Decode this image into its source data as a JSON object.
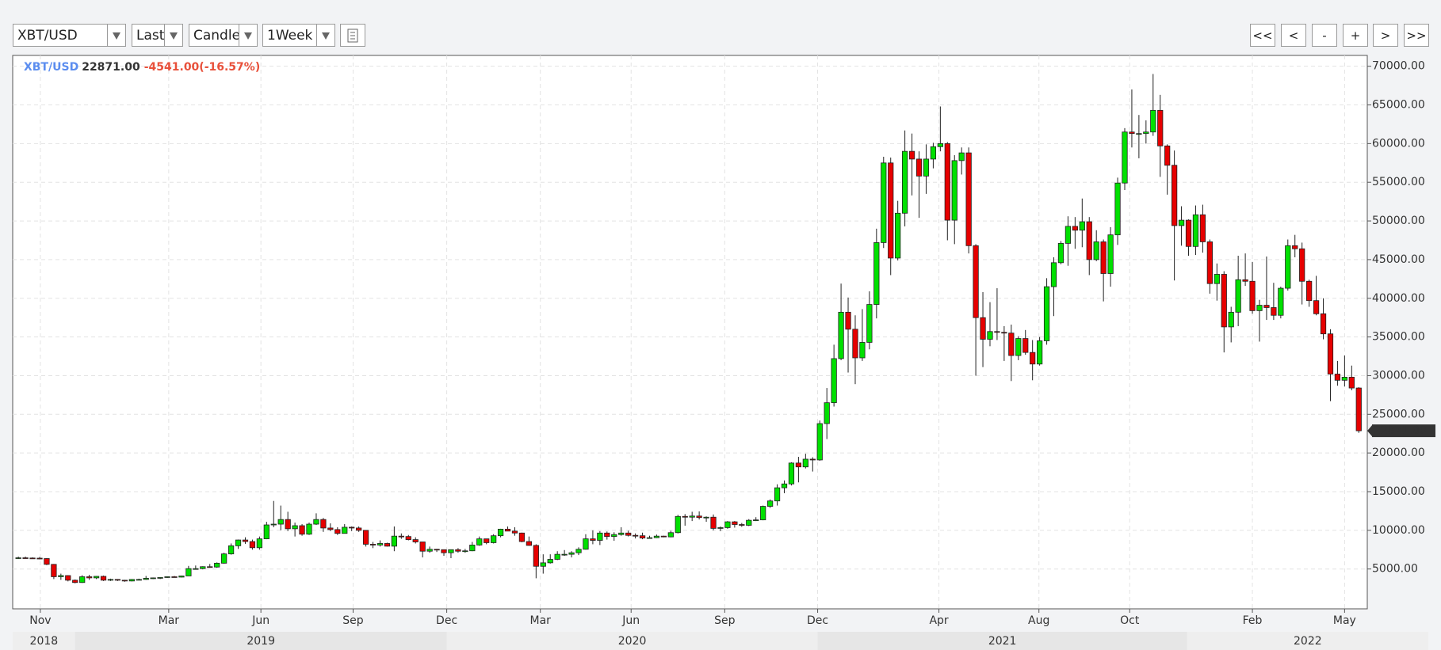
{
  "toolbar": {
    "selects": [
      "XBT/USD",
      "Last",
      "Candle",
      "1Week"
    ],
    "buttons": [
      "<<",
      "<",
      "-",
      "+",
      ">",
      ">>"
    ]
  },
  "chart_data": {
    "type": "candlestick",
    "header": {
      "symbol": "XBT/USD",
      "price": "22871.00",
      "change": "-4541.00(-16.57%)"
    },
    "up_color": "#00e000",
    "down_color": "#e60000",
    "grid": true,
    "xlim": [
      -0.8,
      190.2
    ],
    "xticks": [
      {
        "value": 3.1,
        "label": "Nov"
      },
      {
        "value": 21.2,
        "label": "Mar"
      },
      {
        "value": 34.2,
        "label": "Jun"
      },
      {
        "value": 47.2,
        "label": "Sep"
      },
      {
        "value": 60.4,
        "label": "Dec"
      },
      {
        "value": 73.6,
        "label": "Mar"
      },
      {
        "value": 86.4,
        "label": "Jun"
      },
      {
        "value": 99.6,
        "label": "Sep"
      },
      {
        "value": 112.7,
        "label": "Dec"
      },
      {
        "value": 129.8,
        "label": "Apr"
      },
      {
        "value": 143.9,
        "label": "Aug"
      },
      {
        "value": 156.7,
        "label": "Oct"
      },
      {
        "value": 174.0,
        "label": "Feb"
      },
      {
        "value": 187.0,
        "label": "May"
      }
    ],
    "year_bands": [
      {
        "label": "2018",
        "start": -0.8,
        "end": 8.0
      },
      {
        "label": "2019",
        "start": 8.0,
        "end": 60.4
      },
      {
        "label": "2020",
        "start": 60.4,
        "end": 112.7
      },
      {
        "label": "2021",
        "start": 112.7,
        "end": 164.8
      },
      {
        "label": "2022",
        "start": 164.8,
        "end": 198.8
      }
    ],
    "ylim": [
      -150,
      71400
    ],
    "yticks": [
      {
        "value": 5000,
        "label": "5000.00"
      },
      {
        "value": 10000,
        "label": "10000.00"
      },
      {
        "value": 15000,
        "label": "15000.00"
      },
      {
        "value": 20000,
        "label": "20000.00"
      },
      {
        "value": 25000,
        "label": "25000.00"
      },
      {
        "value": 30000,
        "label": "30000.00"
      },
      {
        "value": 35000,
        "label": "35000.00"
      },
      {
        "value": 40000,
        "label": "40000.00"
      },
      {
        "value": 45000,
        "label": "45000.00"
      },
      {
        "value": 50000,
        "label": "50000.00"
      },
      {
        "value": 55000,
        "label": "55000.00"
      },
      {
        "value": 60000,
        "label": "60000.00"
      },
      {
        "value": 65000,
        "label": "65000.00"
      },
      {
        "value": 70000,
        "label": "70000.00"
      }
    ],
    "open": [
      6400,
      6450,
      6420,
      6400,
      6350,
      5600,
      4000,
      4150,
      3550,
      3250,
      4000,
      3850,
      4050,
      3550,
      3650,
      3550,
      3450,
      3650,
      3650,
      3800,
      3850,
      3900,
      4000,
      3950,
      4100,
      5050,
      5050,
      5300,
      5250,
      5750,
      6950,
      8000,
      8750,
      8550,
      7750,
      8900,
      10700,
      10800,
      11400,
      10200,
      10600,
      9500,
      10800,
      11400,
      10300,
      10100,
      9600,
      10400,
      10300,
      10000,
      8200,
      8100,
      8300,
      7950,
      9250,
      9200,
      8800,
      8500,
      7300,
      7550,
      7500,
      7100,
      7500,
      7300,
      7350,
      8100,
      8900,
      8400,
      9300,
      10150,
      9900,
      9650,
      8550,
      8050,
      5350,
      5800,
      6250,
      6900,
      6900,
      7100,
      7550,
      8900,
      8700,
      9650,
      9200,
      9450,
      9650,
      9350,
      9300,
      9000,
      9050,
      9250,
      9150,
      9700,
      11800,
      11700,
      11850,
      11650,
      11700,
      10250,
      10350,
      11100,
      10750,
      10650,
      11300,
      11350,
      13100,
      13800,
      15500,
      16000,
      18700,
      18200,
      19200,
      19100,
      23800,
      26500,
      32200,
      38200,
      36000,
      32300,
      34300,
      39200,
      47200,
      57500,
      45200,
      51000,
      59000,
      58000,
      55800,
      58000,
      59600,
      60000,
      50100,
      57800,
      58800,
      46800,
      37500,
      34700,
      35700,
      35600,
      35500,
      32600,
      34800,
      33000,
      31500,
      34500,
      41500,
      44600,
      47100,
      49300,
      48800,
      49900,
      45000,
      47300,
      43200,
      48200,
      54900,
      61500,
      61300,
      61300,
      61500,
      64300,
      59700,
      57200,
      49400,
      50100,
      46700,
      50800,
      47300,
      41900,
      43100,
      36300,
      38200,
      42400,
      42200,
      38400,
      39100,
      38800,
      37800,
      41300,
      46800,
      46400,
      42200,
      39700,
      38000,
      35400,
      30200,
      29400,
      29800,
      28400
    ],
    "high": [
      6600,
      6600,
      6500,
      6550,
      6400,
      5650,
      4400,
      4200,
      3650,
      4200,
      4250,
      4100,
      4150,
      3750,
      3700,
      3600,
      3700,
      3750,
      4100,
      3900,
      3950,
      4050,
      4100,
      4150,
      5400,
      5450,
      5350,
      5650,
      5850,
      7100,
      8300,
      8800,
      9100,
      8800,
      9200,
      11100,
      13800,
      13200,
      12400,
      11000,
      10800,
      11000,
      12200,
      11600,
      10900,
      10400,
      10800,
      10500,
      10500,
      10000,
      8500,
      8700,
      8400,
      10500,
      9600,
      9400,
      9100,
      8500,
      7900,
      7600,
      7500,
      7500,
      7700,
      7600,
      8500,
      9200,
      8900,
      9500,
      10200,
      10500,
      10400,
      9700,
      9200,
      8200,
      6900,
      6900,
      7300,
      7450,
      7300,
      7800,
      9500,
      10000,
      9900,
      9850,
      9750,
      10400,
      9950,
      9600,
      9700,
      9300,
      9450,
      9300,
      9950,
      12000,
      12100,
      12400,
      12450,
      11800,
      12050,
      10500,
      11200,
      11200,
      10950,
      11450,
      11700,
      13200,
      14000,
      15950,
      16450,
      18800,
      19500,
      19900,
      19450,
      24200,
      28400,
      34000,
      41900,
      40100,
      37800,
      38600,
      40900,
      49000,
      58300,
      58200,
      52600,
      61700,
      61300,
      59000,
      59900,
      60100,
      64800,
      60200,
      58500,
      59500,
      59500,
      47000,
      40800,
      39500,
      41300,
      36400,
      36600,
      35100,
      35900,
      34600,
      35000,
      42600,
      45300,
      47400,
      50600,
      50500,
      52900,
      50500,
      48800,
      47600,
      49200,
      55600,
      62000,
      67000,
      63700,
      63000,
      69000,
      66300,
      59900,
      59100,
      51900,
      50200,
      52000,
      52100,
      47600,
      44500,
      43500,
      38900,
      45500,
      45800,
      44700,
      39800,
      45400,
      42000,
      41500,
      47600,
      48200,
      47200,
      42400,
      42900,
      40000,
      36000,
      31900,
      32600,
      31300,
      28500
    ],
    "low": [
      6300,
      6350,
      6300,
      6250,
      5500,
      3700,
      3600,
      3400,
      3150,
      3200,
      3600,
      3700,
      3450,
      3450,
      3450,
      3350,
      3400,
      3550,
      3600,
      3700,
      3700,
      3850,
      3900,
      3900,
      4100,
      4950,
      4950,
      5150,
      5150,
      5700,
      6850,
      7600,
      8250,
      7500,
      7500,
      8850,
      10400,
      10000,
      9900,
      9200,
      9300,
      9400,
      10700,
      9800,
      9900,
      9400,
      9600,
      9900,
      9800,
      7900,
      7700,
      7900,
      7900,
      7300,
      8900,
      8700,
      8300,
      6500,
      7100,
      7200,
      6700,
      6400,
      7100,
      7100,
      7300,
      8000,
      8200,
      8300,
      9100,
      9900,
      9300,
      8450,
      8000,
      3800,
      4400,
      5700,
      6150,
      6700,
      6500,
      6800,
      7500,
      8200,
      8100,
      8800,
      8650,
      9300,
      9200,
      8950,
      8850,
      8950,
      9000,
      9100,
      9100,
      9600,
      10600,
      11200,
      11400,
      11100,
      10000,
      9900,
      10200,
      10350,
      10450,
      10550,
      11200,
      11300,
      12900,
      13200,
      14800,
      15800,
      16200,
      18000,
      17600,
      19000,
      21800,
      26000,
      32000,
      30400,
      28900,
      31900,
      33400,
      37400,
      46500,
      43000,
      44900,
      49300,
      53300,
      50400,
      53500,
      56800,
      59000,
      47500,
      47000,
      56000,
      45800,
      30000,
      31100,
      33800,
      34600,
      31900,
      29300,
      32000,
      32700,
      29400,
      31300,
      34000,
      37700,
      44400,
      44200,
      46400,
      46600,
      43000,
      44800,
      39600,
      41500,
      46900,
      54000,
      59500,
      58100,
      60000,
      61000,
      55700,
      53400,
      42300,
      46800,
      45500,
      45600,
      45900,
      40600,
      39700,
      33000,
      34300,
      36400,
      41600,
      38000,
      34400,
      37200,
      37200,
      37400,
      41000,
      45300,
      39200,
      38900,
      37800,
      34700,
      26700,
      28700,
      28600,
      28100,
      22600
    ],
    "close": [
      6450,
      6420,
      6400,
      6350,
      5600,
      4000,
      4150,
      3550,
      3250,
      4000,
      3850,
      4050,
      3550,
      3650,
      3550,
      3450,
      3650,
      3650,
      3800,
      3850,
      3900,
      4000,
      3950,
      4100,
      5050,
      5050,
      5300,
      5250,
      5750,
      6950,
      8000,
      8750,
      8550,
      7750,
      8900,
      10700,
      10800,
      11400,
      10200,
      10600,
      9500,
      10800,
      11400,
      10300,
      10100,
      9600,
      10400,
      10300,
      10000,
      8200,
      8100,
      8300,
      7950,
      9250,
      9200,
      8800,
      8500,
      7300,
      7550,
      7500,
      7100,
      7500,
      7300,
      7350,
      8100,
      8900,
      8400,
      9300,
      10150,
      9900,
      9650,
      8550,
      8050,
      5350,
      5800,
      6250,
      6900,
      6900,
      7100,
      7550,
      8900,
      8700,
      9650,
      9200,
      9450,
      9650,
      9350,
      9300,
      9000,
      9050,
      9250,
      9150,
      9700,
      11800,
      11700,
      11850,
      11650,
      11700,
      10250,
      10350,
      11100,
      10750,
      10650,
      11300,
      11350,
      13100,
      13800,
      15500,
      16000,
      18700,
      18200,
      19200,
      19100,
      23800,
      26500,
      32200,
      38200,
      36000,
      32300,
      34300,
      39200,
      47200,
      57500,
      45200,
      51000,
      59000,
      58000,
      55800,
      58000,
      59600,
      60000,
      50100,
      57800,
      58800,
      46800,
      37500,
      34700,
      35700,
      35600,
      35500,
      32600,
      34800,
      33000,
      31500,
      34500,
      41500,
      44600,
      47100,
      49300,
      48800,
      49900,
      45000,
      47300,
      43200,
      48200,
      54900,
      61500,
      61300,
      61300,
      61500,
      64300,
      59700,
      57200,
      49400,
      50100,
      46700,
      50800,
      47300,
      41900,
      43100,
      36300,
      38200,
      42400,
      42200,
      38400,
      39100,
      38800,
      37800,
      41300,
      46800,
      46400,
      42200,
      39700,
      38000,
      35400,
      30200,
      29400,
      29800,
      28400,
      22871
    ]
  }
}
